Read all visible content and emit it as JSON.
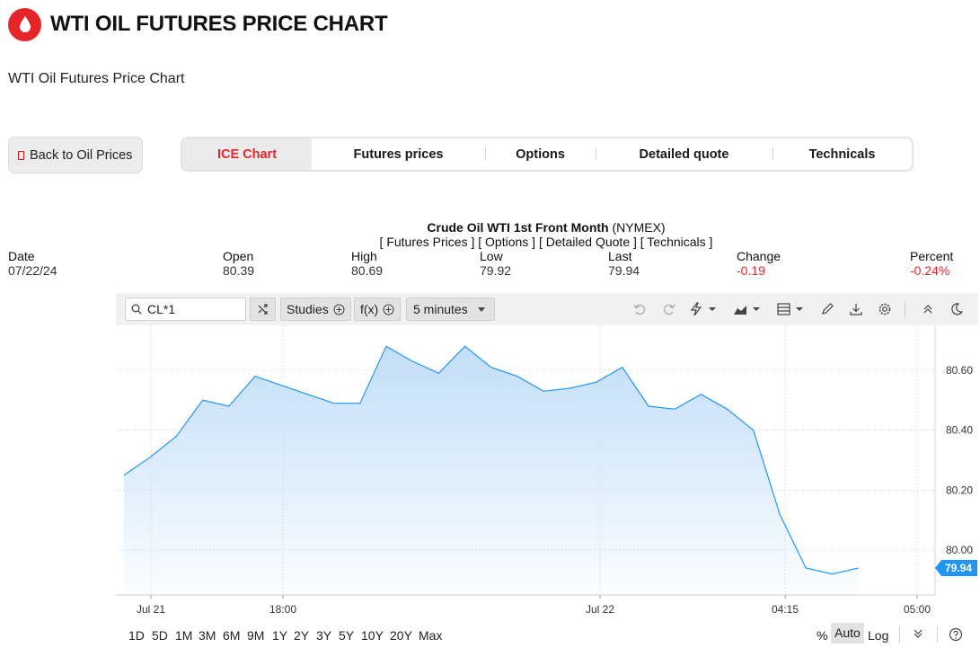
{
  "header": {
    "title": "WTI OIL FUTURES PRICE CHART",
    "logo_icon": "oil-drop-icon",
    "brand_color": "#e4262b"
  },
  "subtitle": "WTI Oil Futures Price Chart",
  "back_button": {
    "label": "Back to Oil Prices",
    "icon": "back-icon"
  },
  "tabs": [
    {
      "label": "ICE Chart",
      "active": true
    },
    {
      "label": "Futures prices",
      "active": false
    },
    {
      "label": "Options",
      "active": false
    },
    {
      "label": "Detailed quote",
      "active": false
    },
    {
      "label": "Technicals",
      "active": false
    }
  ],
  "chart_heading": {
    "name": "Crude Oil WTI 1st Front Month",
    "exchange": "(NYMEX)",
    "links": "[ Futures Prices ] [ Options ] [ Detailed Quote ] [ Technicals ]"
  },
  "quote": {
    "date": {
      "label": "Date",
      "value": "07/22/24"
    },
    "open": {
      "label": "Open",
      "value": "80.39"
    },
    "high": {
      "label": "High",
      "value": "80.69"
    },
    "low": {
      "label": "Low",
      "value": "79.92"
    },
    "last": {
      "label": "Last",
      "value": "79.94"
    },
    "change": {
      "label": "Change",
      "value": "-0.19"
    },
    "percent": {
      "label": "Percent",
      "value": "-0.24%"
    },
    "negative_color": "#e4262b"
  },
  "toolbar": {
    "symbol": "CL*1",
    "studies_label": "Studies",
    "fx_label": "f(x)",
    "interval_label": "5 minutes",
    "icons": [
      "search-icon",
      "shuffle-icon",
      "undo-icon",
      "redo-icon",
      "lightning-icon",
      "area-chart-icon",
      "layout-icon",
      "pencil-icon",
      "download-icon",
      "gear-icon",
      "collapse-icon",
      "dark-mode-icon"
    ]
  },
  "chart_data": {
    "type": "area",
    "symbol": "CL*1",
    "interval": "5 minutes",
    "x_ticks": [
      "Jul 21",
      "18:00",
      "Jul 22",
      "04:15",
      "05:00"
    ],
    "y_ticks": [
      "80.60",
      "80.40",
      "80.20",
      "80.00"
    ],
    "ylim": [
      79.85,
      80.75
    ],
    "series": [
      {
        "values": [
          80.25,
          80.31,
          80.38,
          80.5,
          80.48,
          80.58,
          80.55,
          80.52,
          80.49,
          80.49,
          80.68,
          80.63,
          80.59,
          80.68,
          80.61,
          80.58,
          80.53,
          80.54,
          80.56,
          80.61,
          80.48,
          80.47,
          80.52,
          80.47,
          80.4,
          80.12,
          79.94,
          79.92,
          79.94
        ]
      }
    ],
    "last_value": "79.94",
    "line_color": "#2196f3",
    "fill_color": "#bfdcf7",
    "grid": true,
    "price_axis": "right"
  },
  "bottom_bar": {
    "ranges": [
      "1D",
      "5D",
      "1M",
      "3M",
      "6M",
      "9M",
      "1Y",
      "2Y",
      "3Y",
      "5Y",
      "10Y",
      "20Y",
      "Max"
    ],
    "scales": [
      "%",
      "Auto",
      "Log"
    ],
    "active_scale": "Auto",
    "icons": [
      "chevrons-down-icon",
      "help-icon"
    ]
  }
}
